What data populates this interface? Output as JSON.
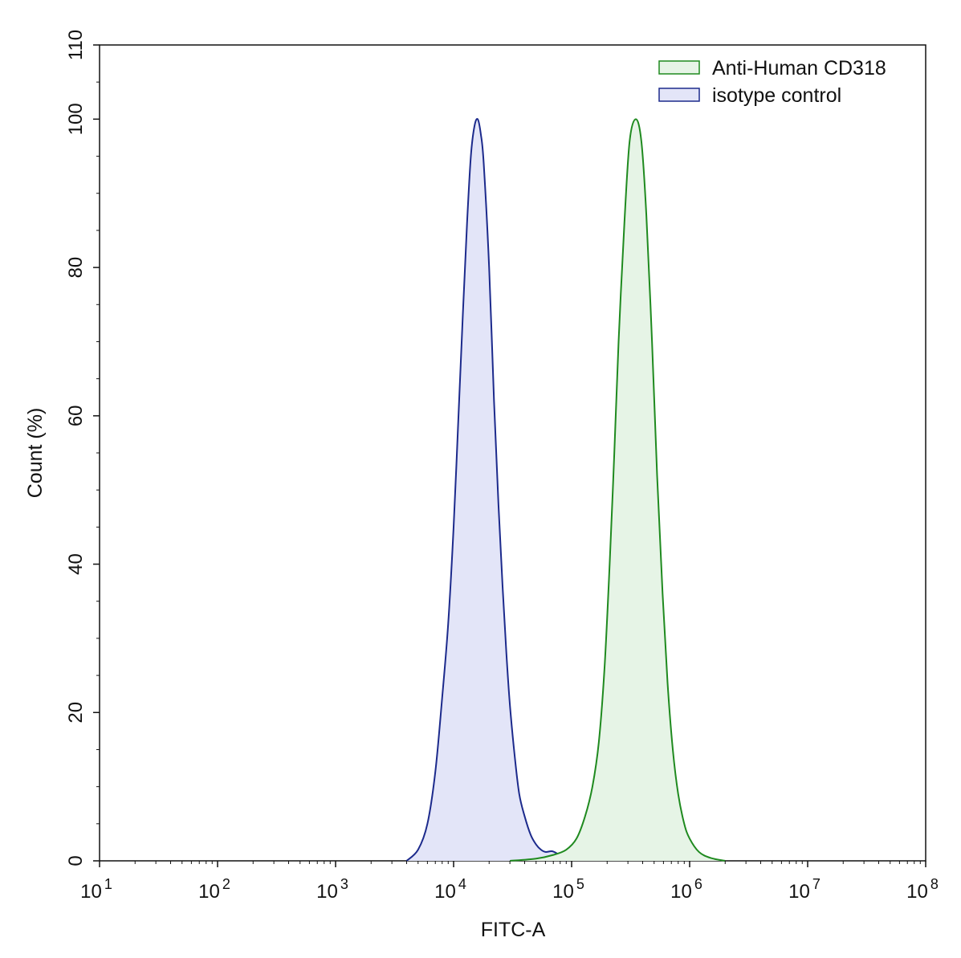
{
  "chart_data": {
    "type": "area",
    "xlabel": "FITC-A",
    "ylabel": "Count  (%)",
    "x_scale": "log",
    "xlim": [
      10,
      100000000
    ],
    "ylim": [
      0,
      110
    ],
    "x_ticks": [
      {
        "base": "10",
        "exp": "1",
        "value": 10
      },
      {
        "base": "10",
        "exp": "2",
        "value": 100
      },
      {
        "base": "10",
        "exp": "3",
        "value": 1000
      },
      {
        "base": "10",
        "exp": "4",
        "value": 10000
      },
      {
        "base": "10",
        "exp": "5",
        "value": 100000
      },
      {
        "base": "10",
        "exp": "6",
        "value": 1000000
      },
      {
        "base": "10",
        "exp": "7",
        "value": 10000000
      },
      {
        "base": "10",
        "exp": "8",
        "value": 100000000
      }
    ],
    "y_ticks": [
      {
        "label": "0",
        "value": 0
      },
      {
        "label": "20",
        "value": 20
      },
      {
        "label": "40",
        "value": 40
      },
      {
        "label": "60",
        "value": 60
      },
      {
        "label": "80",
        "value": 80
      },
      {
        "label": "100",
        "value": 100
      },
      {
        "label": "110",
        "value": 110
      }
    ],
    "grid": false,
    "legend_position": "top-right",
    "series": [
      {
        "name": "Anti-Human CD318",
        "stroke": "#1f8a1f",
        "fill": "#e6f4e6",
        "x": [
          30000,
          50000,
          70000,
          90000,
          110000,
          130000,
          150000,
          170000,
          190000,
          210000,
          230000,
          250000,
          280000,
          310000,
          350000,
          390000,
          430000,
          480000,
          530000,
          590000,
          650000,
          720000,
          800000,
          900000,
          1000000,
          1200000,
          1500000,
          2000000
        ],
        "values": [
          0,
          0.3,
          0.8,
          1.5,
          3,
          6,
          10,
          16,
          26,
          40,
          55,
          70,
          86,
          97,
          100,
          97,
          87,
          70,
          52,
          36,
          24,
          15,
          9,
          5,
          3,
          1.2,
          0.4,
          0
        ]
      },
      {
        "name": "isotype control",
        "stroke": "#1c2a8c",
        "fill": "#e3e5f8",
        "x": [
          4000,
          5000,
          6000,
          7000,
          8000,
          9000,
          10000,
          11000,
          12000,
          13000,
          14000,
          15000,
          16000,
          17000,
          18000,
          20000,
          22000,
          24000,
          26000,
          28000,
          30000,
          33000,
          36000,
          40000,
          45000,
          50000,
          55000,
          60000,
          68000,
          75000,
          82000,
          90000
        ],
        "values": [
          0,
          1.5,
          5,
          12,
          22,
          32,
          45,
          60,
          74,
          86,
          95,
          99,
          100,
          98,
          94,
          80,
          62,
          48,
          37,
          28,
          21,
          14,
          9,
          6,
          3.5,
          2.2,
          1.5,
          1.2,
          1.3,
          1.0,
          0.5,
          0
        ]
      }
    ]
  }
}
